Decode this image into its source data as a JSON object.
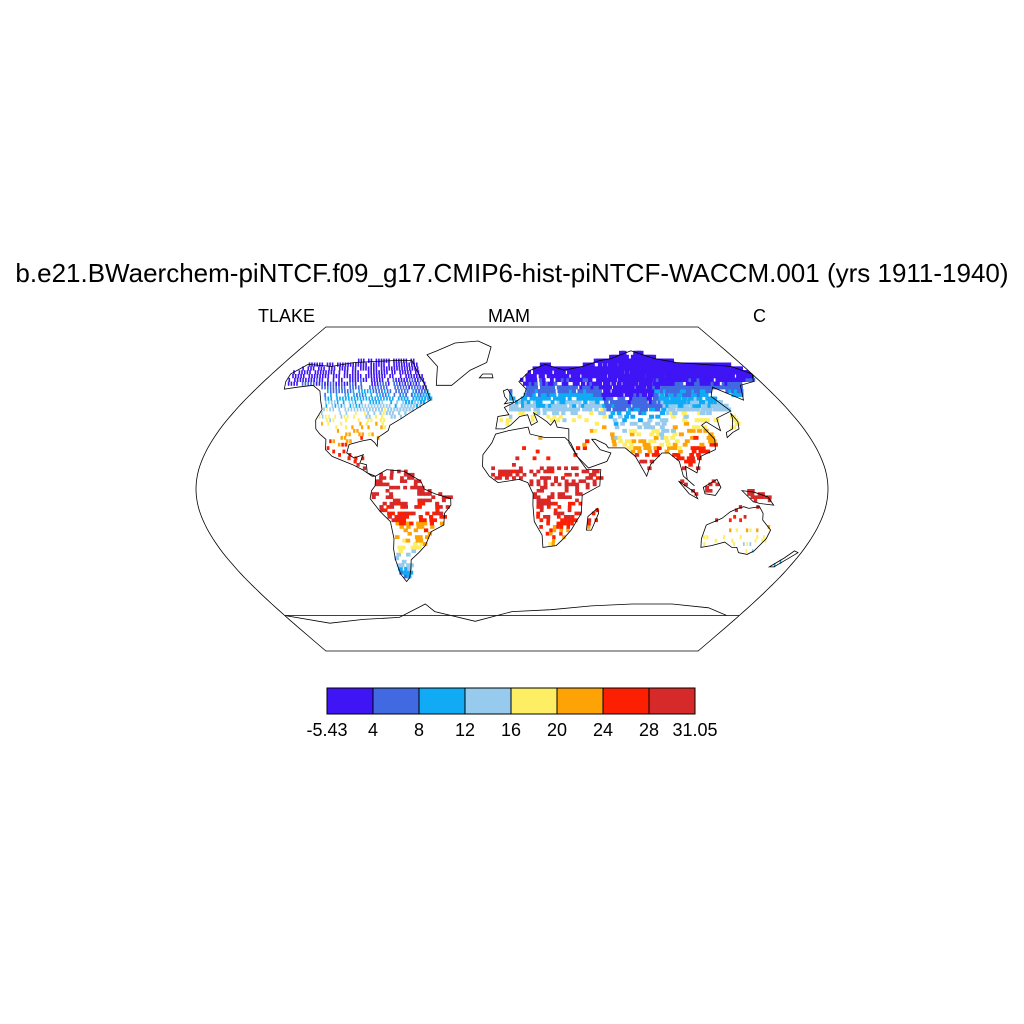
{
  "header": {
    "title": "b.e21.BWaerchem-piNTCF.f09_g17.CMIP6-hist-piNTCF-WACCM.001 (yrs 1911-1940)",
    "variable": "TLAKE",
    "season": "MAM",
    "units": "C"
  },
  "colorbar": {
    "labels": [
      "-5.43",
      "4",
      "8",
      "12",
      "16",
      "20",
      "24",
      "28",
      "31.05"
    ],
    "colors": [
      "#3f14f5",
      "#4169e1",
      "#10aaf5",
      "#96cbee",
      "#fdee64",
      "#fda305",
      "#fd1f01",
      "#d62a2a"
    ]
  },
  "map": {
    "projection": "robinson",
    "ocean_fill": "#ffffff",
    "coastline_color": "#000000"
  }
}
